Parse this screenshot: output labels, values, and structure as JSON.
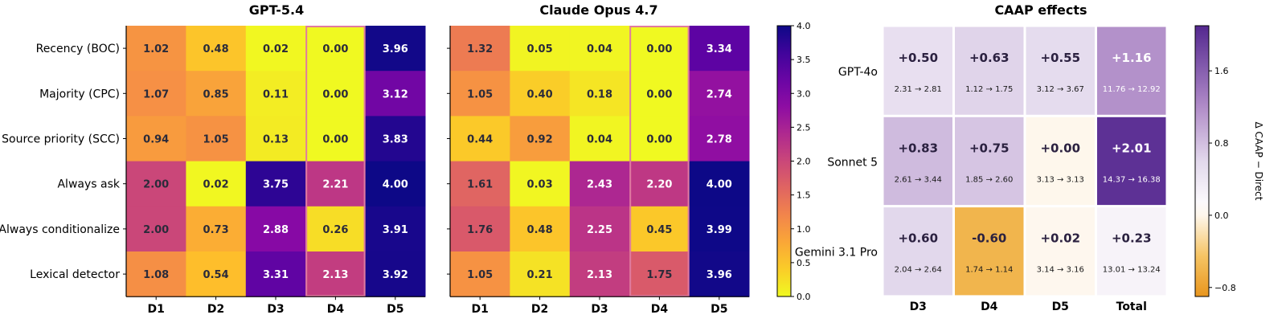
{
  "chart_data": [
    {
      "type": "heatmap",
      "title": "GPT-5.4",
      "rows": [
        "Recency (BOC)",
        "Majority (CPC)",
        "Source priority (SCC)",
        "Always ask",
        "Always conditionalize",
        "Lexical detector"
      ],
      "columns": [
        "D1",
        "D2",
        "D3",
        "D4",
        "D5"
      ],
      "values": [
        [
          1.02,
          0.48,
          0.02,
          0.0,
          3.96
        ],
        [
          1.07,
          0.85,
          0.11,
          0.0,
          3.12
        ],
        [
          0.94,
          1.05,
          0.13,
          0.0,
          3.83
        ],
        [
          2.0,
          0.02,
          3.75,
          2.21,
          4.0
        ],
        [
          2.0,
          0.73,
          2.88,
          0.26,
          3.91
        ],
        [
          1.08,
          0.54,
          3.31,
          2.13,
          3.92
        ]
      ],
      "labels": [
        [
          "1.02",
          "0.48",
          "0.02",
          "0.00",
          "3.96"
        ],
        [
          "1.07",
          "0.85",
          "0.11",
          "0.00",
          "3.12"
        ],
        [
          "0.94",
          "1.05",
          "0.13",
          "0.00",
          "3.83"
        ],
        [
          "2.00",
          "0.02",
          "3.75",
          "2.21",
          "4.00"
        ],
        [
          "2.00",
          "0.73",
          "2.88",
          "0.26",
          "3.91"
        ],
        [
          "1.08",
          "0.54",
          "3.31",
          "2.13",
          "3.92"
        ]
      ],
      "highlighted_column": "D4",
      "colormap": "plasma_r",
      "vmin": 0,
      "vmax": 4
    },
    {
      "type": "heatmap",
      "title": "Claude Opus 4.7",
      "rows": [
        "Recency (BOC)",
        "Majority (CPC)",
        "Source priority (SCC)",
        "Always ask",
        "Always conditionalize",
        "Lexical detector"
      ],
      "columns": [
        "D1",
        "D2",
        "D3",
        "D4",
        "D5"
      ],
      "values": [
        [
          1.32,
          0.05,
          0.04,
          0.0,
          3.34
        ],
        [
          1.05,
          0.4,
          0.18,
          0.0,
          2.74
        ],
        [
          0.44,
          0.92,
          0.04,
          0.0,
          2.78
        ],
        [
          1.61,
          0.03,
          2.43,
          2.2,
          4.0
        ],
        [
          1.76,
          0.48,
          2.25,
          0.45,
          3.99
        ],
        [
          1.05,
          0.21,
          2.13,
          1.75,
          3.96
        ]
      ],
      "labels": [
        [
          "1.32",
          "0.05",
          "0.04",
          "0.00",
          "3.34"
        ],
        [
          "1.05",
          "0.40",
          "0.18",
          "0.00",
          "2.74"
        ],
        [
          "0.44",
          "0.92",
          "0.04",
          "0.00",
          "2.78"
        ],
        [
          "1.61",
          "0.03",
          "2.43",
          "2.20",
          "4.00"
        ],
        [
          "1.76",
          "0.48",
          "2.25",
          "0.45",
          "3.99"
        ],
        [
          "1.05",
          "0.21",
          "2.13",
          "1.75",
          "3.96"
        ]
      ],
      "highlighted_column": "D4",
      "colormap": "plasma_r",
      "vmin": 0,
      "vmax": 4,
      "colorbar": {
        "ticks": [
          0.0,
          0.5,
          1.0,
          1.5,
          2.0,
          2.5,
          3.0,
          3.5,
          4.0
        ],
        "tick_labels": [
          "0.0",
          "0.5",
          "1.0",
          "1.5",
          "2.0",
          "2.5",
          "3.0",
          "3.5",
          "4.0"
        ]
      }
    },
    {
      "type": "heatmap",
      "title": "CAAP effects",
      "rows": [
        "GPT-4o",
        "Sonnet 5",
        "Gemini 3.1 Pro"
      ],
      "columns": [
        "D3",
        "D4",
        "D5",
        "Total"
      ],
      "values": [
        [
          0.5,
          0.63,
          0.55,
          1.16
        ],
        [
          0.83,
          0.75,
          0.0,
          2.01
        ],
        [
          0.6,
          -0.6,
          0.02,
          0.23
        ]
      ],
      "delta_labels": [
        [
          "+0.50",
          "+0.63",
          "+0.55",
          "+1.16"
        ],
        [
          "+0.83",
          "+0.75",
          "+0.00",
          "+2.01"
        ],
        [
          "+0.60",
          "-0.60",
          "+0.02",
          "+0.23"
        ]
      ],
      "range_labels": [
        [
          "2.31 → 2.81",
          "1.12 → 1.75",
          "3.12 → 3.67",
          "11.76 → 12.92"
        ],
        [
          "2.61 → 3.44",
          "1.85 → 2.60",
          "3.13 → 3.13",
          "14.37 → 16.38"
        ],
        [
          "2.04 → 2.64",
          "1.74 → 1.14",
          "3.14 → 3.16",
          "13.01 → 13.24"
        ]
      ],
      "colormap": "PuOr_r",
      "vmin": -0.9,
      "vmax": 2.1,
      "colorbar": {
        "label": "Δ CAAP − Direct",
        "ticks": [
          -0.8,
          0.0,
          0.8,
          1.6
        ],
        "tick_labels": [
          "−0.8",
          "0.0",
          "0.8",
          "1.6"
        ]
      }
    }
  ]
}
